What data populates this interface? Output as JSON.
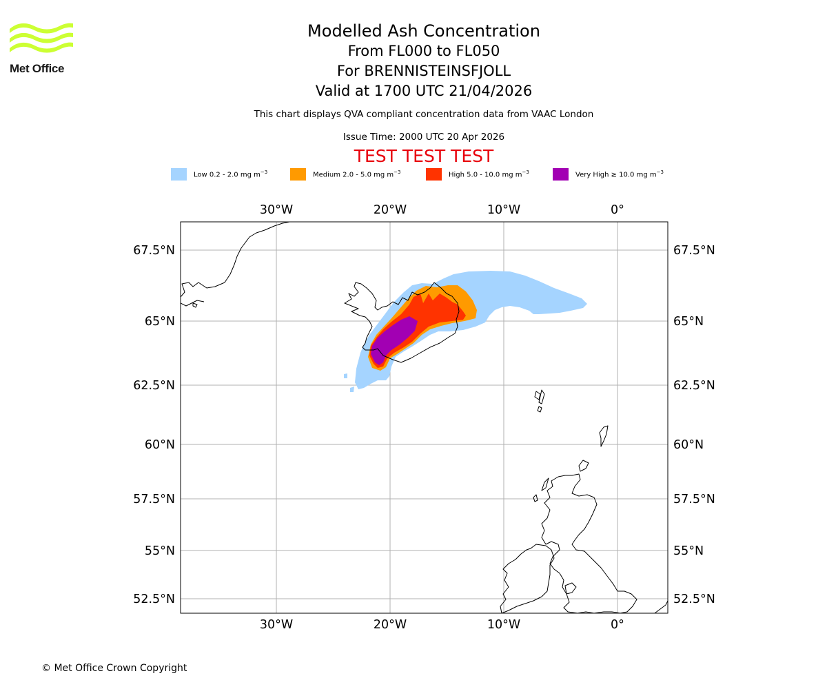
{
  "logo": {
    "text": "Met Office",
    "icon": "met-office-wave-logo",
    "color": "#ccff33"
  },
  "title": {
    "line1": "Modelled Ash Concentration",
    "line2": "From FL000 to FL050",
    "line3": "For BRENNISTEINSFJOLL",
    "line4": "Valid at 1700 UTC 21/04/2026"
  },
  "subtitle": "This chart displays QVA compliant concentration data from VAAC London",
  "issue_time": "Issue Time: 2000 UTC 20 Apr 2026",
  "test_banner": "TEST TEST TEST",
  "legend": [
    {
      "name": "low",
      "label": "Low 0.2 - 2.0 mg m",
      "color": "#a5d4ff"
    },
    {
      "name": "medium",
      "label": "Medium 2.0 - 5.0 mg m",
      "color": "#ff9a00"
    },
    {
      "name": "high",
      "label": "High 5.0 - 10.0 mg m",
      "color": "#ff3300"
    },
    {
      "name": "very-high",
      "label": "Very High ≥ 10.0 mg m",
      "color": "#a200b3"
    }
  ],
  "legend_unit_exp": "−3",
  "axes": {
    "lon_labels": [
      "30°W",
      "20°W",
      "10°W",
      "0°"
    ],
    "lat_labels": [
      "67.5°N",
      "65°N",
      "62.5°N",
      "60°N",
      "57.5°N",
      "55°N",
      "52.5°N"
    ]
  },
  "copyright": "© Met Office Crown Copyright"
}
